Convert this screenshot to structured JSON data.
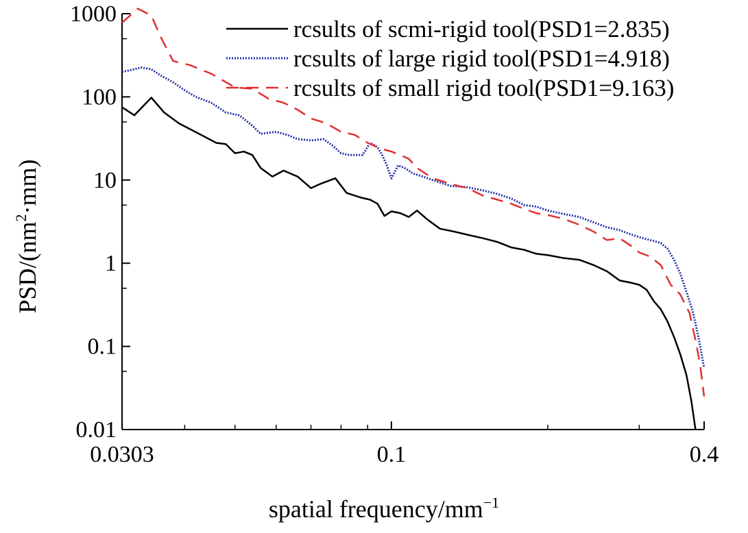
{
  "chart_data": {
    "type": "line",
    "title": "",
    "xlabel": {
      "main": "spatial frequency/mm",
      "superscript": "−1"
    },
    "ylabel": {
      "prefix": "PSD/(nm",
      "superscript": "2",
      "suffix": "·mm)"
    },
    "x_scale": "log",
    "y_scale": "log",
    "xlim": [
      0.0303,
      0.4
    ],
    "ylim": [
      0.01,
      1000
    ],
    "x_tick_labels": [
      {
        "value": 0.0303,
        "label": "0.0303"
      },
      {
        "value": 0.1,
        "label": "0.1"
      },
      {
        "value": 0.4,
        "label": "0.4"
      }
    ],
    "y_tick_labels": [
      {
        "value": 0.01,
        "label": "0.01"
      },
      {
        "value": 0.1,
        "label": "0.1"
      },
      {
        "value": 1,
        "label": "1"
      },
      {
        "value": 10,
        "label": "10"
      },
      {
        "value": 100,
        "label": "100"
      },
      {
        "value": 1000,
        "label": "1000"
      }
    ],
    "grid": false,
    "legend_position": "top-right",
    "series": [
      {
        "name": "rcsults of scmi-rigid tool(PSD1=2.835)",
        "color": "#000000",
        "style": "solid",
        "points": [
          [
            0.0303,
            75
          ],
          [
            0.032,
            60
          ],
          [
            0.0345,
            98
          ],
          [
            0.0365,
            65
          ],
          [
            0.039,
            48
          ],
          [
            0.043,
            35
          ],
          [
            0.046,
            28
          ],
          [
            0.048,
            27
          ],
          [
            0.05,
            21
          ],
          [
            0.052,
            22
          ],
          [
            0.054,
            20
          ],
          [
            0.056,
            14
          ],
          [
            0.059,
            11
          ],
          [
            0.062,
            13
          ],
          [
            0.066,
            11
          ],
          [
            0.07,
            8
          ],
          [
            0.073,
            9
          ],
          [
            0.078,
            10.5
          ],
          [
            0.082,
            7
          ],
          [
            0.087,
            6.2
          ],
          [
            0.091,
            5.8
          ],
          [
            0.094,
            5.2
          ],
          [
            0.097,
            3.7
          ],
          [
            0.1,
            4.2
          ],
          [
            0.104,
            4
          ],
          [
            0.108,
            3.6
          ],
          [
            0.112,
            4.3
          ],
          [
            0.117,
            3.4
          ],
          [
            0.124,
            2.6
          ],
          [
            0.132,
            2.4
          ],
          [
            0.14,
            2.2
          ],
          [
            0.15,
            2
          ],
          [
            0.16,
            1.8
          ],
          [
            0.17,
            1.55
          ],
          [
            0.18,
            1.45
          ],
          [
            0.19,
            1.3
          ],
          [
            0.2,
            1.25
          ],
          [
            0.215,
            1.15
          ],
          [
            0.23,
            1.1
          ],
          [
            0.245,
            0.95
          ],
          [
            0.26,
            0.8
          ],
          [
            0.275,
            0.62
          ],
          [
            0.29,
            0.58
          ],
          [
            0.3,
            0.55
          ],
          [
            0.31,
            0.48
          ],
          [
            0.32,
            0.35
          ],
          [
            0.33,
            0.28
          ],
          [
            0.34,
            0.2
          ],
          [
            0.35,
            0.13
          ],
          [
            0.36,
            0.08
          ],
          [
            0.37,
            0.045
          ],
          [
            0.378,
            0.022
          ],
          [
            0.385,
            0.01
          ]
        ]
      },
      {
        "name": "rcsults of large rigid tool(PSD1=4.918)",
        "color": "#1f2fa8",
        "style": "dotted",
        "points": [
          [
            0.0303,
            200
          ],
          [
            0.0315,
            210
          ],
          [
            0.033,
            225
          ],
          [
            0.0345,
            215
          ],
          [
            0.036,
            180
          ],
          [
            0.038,
            150
          ],
          [
            0.04,
            120
          ],
          [
            0.042,
            100
          ],
          [
            0.045,
            85
          ],
          [
            0.048,
            65
          ],
          [
            0.051,
            60
          ],
          [
            0.054,
            45
          ],
          [
            0.056,
            36
          ],
          [
            0.06,
            38
          ],
          [
            0.063,
            35
          ],
          [
            0.066,
            31
          ],
          [
            0.07,
            30
          ],
          [
            0.074,
            31
          ],
          [
            0.077,
            26
          ],
          [
            0.08,
            21
          ],
          [
            0.083,
            20
          ],
          [
            0.088,
            20
          ],
          [
            0.091,
            28
          ],
          [
            0.094,
            25
          ],
          [
            0.096,
            20
          ],
          [
            0.098,
            15
          ],
          [
            0.1,
            10.5
          ],
          [
            0.103,
            15
          ],
          [
            0.106,
            14
          ],
          [
            0.11,
            12
          ],
          [
            0.115,
            11
          ],
          [
            0.12,
            10
          ],
          [
            0.13,
            8.5
          ],
          [
            0.14,
            8.2
          ],
          [
            0.15,
            7.5
          ],
          [
            0.16,
            6.8
          ],
          [
            0.17,
            6
          ],
          [
            0.18,
            5
          ],
          [
            0.19,
            4.8
          ],
          [
            0.2,
            4.3
          ],
          [
            0.215,
            3.9
          ],
          [
            0.23,
            3.6
          ],
          [
            0.245,
            3.1
          ],
          [
            0.26,
            2.7
          ],
          [
            0.275,
            2.5
          ],
          [
            0.29,
            2.2
          ],
          [
            0.305,
            2
          ],
          [
            0.32,
            1.85
          ],
          [
            0.33,
            1.75
          ],
          [
            0.34,
            1.5
          ],
          [
            0.35,
            1.1
          ],
          [
            0.36,
            0.75
          ],
          [
            0.37,
            0.45
          ],
          [
            0.38,
            0.27
          ],
          [
            0.39,
            0.13
          ],
          [
            0.4,
            0.055
          ]
        ]
      },
      {
        "name": "rcsults of small rigid tool(PSD1=9.163)",
        "color": "#e03030",
        "style": "dashed",
        "points": [
          [
            0.0303,
            780
          ],
          [
            0.0325,
            1150
          ],
          [
            0.0345,
            950
          ],
          [
            0.036,
            520
          ],
          [
            0.038,
            270
          ],
          [
            0.041,
            240
          ],
          [
            0.045,
            190
          ],
          [
            0.05,
            130
          ],
          [
            0.054,
            125
          ],
          [
            0.058,
            95
          ],
          [
            0.062,
            85
          ],
          [
            0.066,
            70
          ],
          [
            0.07,
            55
          ],
          [
            0.075,
            48
          ],
          [
            0.08,
            38
          ],
          [
            0.085,
            35
          ],
          [
            0.09,
            28
          ],
          [
            0.095,
            24
          ],
          [
            0.1,
            22
          ],
          [
            0.104,
            20
          ],
          [
            0.108,
            18
          ],
          [
            0.112,
            14
          ],
          [
            0.12,
            10.5
          ],
          [
            0.13,
            9
          ],
          [
            0.14,
            8
          ],
          [
            0.15,
            6.5
          ],
          [
            0.16,
            5.8
          ],
          [
            0.17,
            5.2
          ],
          [
            0.18,
            4.5
          ],
          [
            0.19,
            4
          ],
          [
            0.2,
            3.8
          ],
          [
            0.215,
            3.4
          ],
          [
            0.23,
            2.9
          ],
          [
            0.245,
            2.4
          ],
          [
            0.26,
            1.9
          ],
          [
            0.275,
            2
          ],
          [
            0.29,
            1.6
          ],
          [
            0.3,
            1.35
          ],
          [
            0.315,
            1.2
          ],
          [
            0.33,
            0.95
          ],
          [
            0.345,
            0.55
          ],
          [
            0.36,
            0.42
          ],
          [
            0.375,
            0.25
          ],
          [
            0.385,
            0.12
          ],
          [
            0.393,
            0.06
          ],
          [
            0.4,
            0.025
          ]
        ]
      }
    ]
  }
}
